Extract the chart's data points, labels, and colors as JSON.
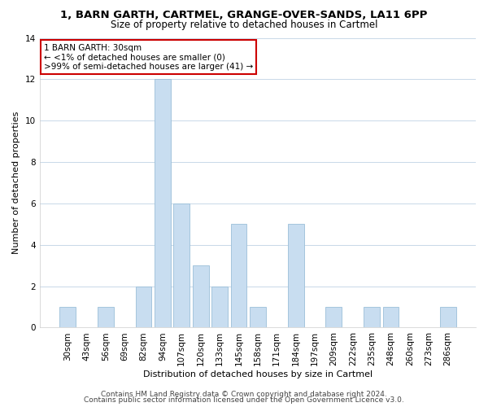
{
  "title": "1, BARN GARTH, CARTMEL, GRANGE-OVER-SANDS, LA11 6PP",
  "subtitle": "Size of property relative to detached houses in Cartmel",
  "xlabel": "Distribution of detached houses by size in Cartmel",
  "ylabel": "Number of detached properties",
  "bar_color": "#c8ddf0",
  "bar_edge_color": "#9bbfd8",
  "categories": [
    "30sqm",
    "43sqm",
    "56sqm",
    "69sqm",
    "82sqm",
    "94sqm",
    "107sqm",
    "120sqm",
    "133sqm",
    "145sqm",
    "158sqm",
    "171sqm",
    "184sqm",
    "197sqm",
    "209sqm",
    "222sqm",
    "235sqm",
    "248sqm",
    "260sqm",
    "273sqm",
    "286sqm"
  ],
  "values": [
    1,
    0,
    1,
    0,
    2,
    12,
    6,
    3,
    2,
    5,
    1,
    0,
    5,
    0,
    1,
    0,
    1,
    1,
    0,
    0,
    1
  ],
  "ylim": [
    0,
    14
  ],
  "yticks": [
    0,
    2,
    4,
    6,
    8,
    10,
    12,
    14
  ],
  "annotation_line1": "1 BARN GARTH: 30sqm",
  "annotation_line2": "← <1% of detached houses are smaller (0)",
  "annotation_line3": ">99% of semi-detached houses are larger (41) →",
  "annotation_box_color": "#ffffff",
  "annotation_box_edge_color": "#cc0000",
  "footer_line1": "Contains HM Land Registry data © Crown copyright and database right 2024.",
  "footer_line2": "Contains public sector information licensed under the Open Government Licence v3.0.",
  "background_color": "#ffffff",
  "grid_color": "#c8d8e8",
  "title_fontsize": 9.5,
  "subtitle_fontsize": 8.5,
  "xlabel_fontsize": 8,
  "ylabel_fontsize": 8,
  "tick_fontsize": 7.5,
  "annotation_fontsize": 7.5,
  "footer_fontsize": 6.5
}
